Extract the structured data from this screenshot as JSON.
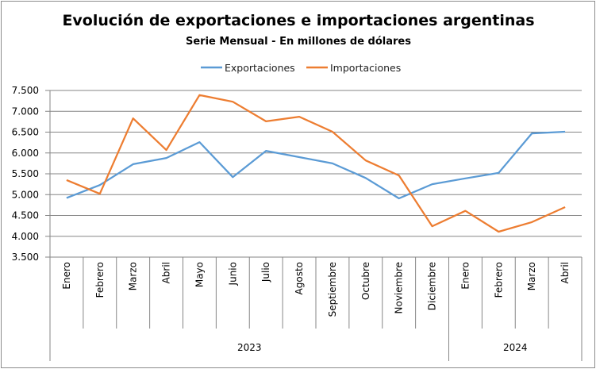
{
  "chart_data": {
    "type": "line",
    "title": "Evolución de exportaciones e importaciones argentinas",
    "subtitle": "Serie Mensual - En millones de dólares",
    "xlabel": "",
    "ylabel": "",
    "categories": [
      "Enero",
      "Febrero",
      "Marzo",
      "Abril",
      "Mayo",
      "Junio",
      "Julio",
      "Agosto",
      "Septiembre",
      "Octubre",
      "Noviembre",
      "Diciembre",
      "Enero",
      "Febrero",
      "Marzo",
      "Abril"
    ],
    "groups": [
      {
        "label": "2023",
        "count": 12
      },
      {
        "label": "2024",
        "count": 4
      }
    ],
    "ylim": [
      3500,
      7500
    ],
    "yticks": [
      3500,
      4000,
      4500,
      5000,
      5500,
      6000,
      6500,
      7000,
      7500
    ],
    "ytick_labels": [
      "3.500",
      "4.000",
      "4.500",
      "5.000",
      "5.500",
      "6.000",
      "6.500",
      "7.000",
      "7.500"
    ],
    "grid": true,
    "legend": "top-center",
    "series": [
      {
        "name": "Exportaciones",
        "color": "#5b9bd5",
        "values": [
          4920,
          5230,
          5730,
          5880,
          6260,
          5420,
          6050,
          5900,
          5750,
          5400,
          4910,
          5250,
          5390,
          5520,
          6470,
          6510
        ]
      },
      {
        "name": "Importaciones",
        "color": "#ed7d31",
        "values": [
          5350,
          5020,
          6830,
          6070,
          7390,
          7230,
          6760,
          6870,
          6510,
          5820,
          5460,
          4240,
          4610,
          4110,
          4340,
          4700
        ]
      }
    ]
  }
}
